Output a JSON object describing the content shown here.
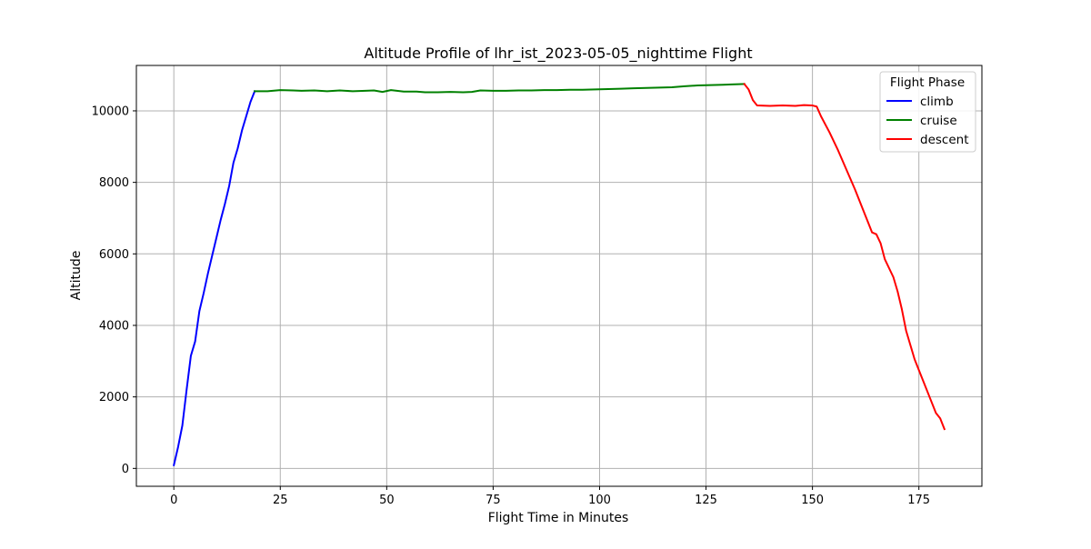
{
  "chart_data": {
    "type": "line",
    "title": "Altitude Profile of lhr_ist_2023-05-05_nighttime Flight",
    "xlabel": "Flight Time in Minutes",
    "ylabel": "Altitude",
    "xlim": [
      -8.8,
      189.8
    ],
    "ylim": [
      -500,
      11270
    ],
    "xticks": [
      0,
      25,
      50,
      75,
      100,
      125,
      150,
      175
    ],
    "yticks": [
      0,
      2000,
      4000,
      6000,
      8000,
      10000
    ],
    "grid": true,
    "legend": {
      "title": "Flight Phase",
      "position": "top-right"
    },
    "series": [
      {
        "name": "climb",
        "color": "#0000ff",
        "points": [
          [
            0,
            90
          ],
          [
            1,
            600
          ],
          [
            2,
            1200
          ],
          [
            3,
            2200
          ],
          [
            4,
            3150
          ],
          [
            5,
            3550
          ],
          [
            6,
            4400
          ],
          [
            7,
            4900
          ],
          [
            8,
            5450
          ],
          [
            9,
            5950
          ],
          [
            10,
            6450
          ],
          [
            11,
            6950
          ],
          [
            12,
            7400
          ],
          [
            13,
            7900
          ],
          [
            14,
            8550
          ],
          [
            15,
            8950
          ],
          [
            16,
            9450
          ],
          [
            17,
            9850
          ],
          [
            18,
            10250
          ],
          [
            19,
            10550
          ]
        ]
      },
      {
        "name": "cruise",
        "color": "#008000",
        "points": [
          [
            19,
            10550
          ],
          [
            22,
            10550
          ],
          [
            25,
            10580
          ],
          [
            28,
            10570
          ],
          [
            30,
            10560
          ],
          [
            33,
            10570
          ],
          [
            36,
            10550
          ],
          [
            39,
            10570
          ],
          [
            42,
            10550
          ],
          [
            45,
            10560
          ],
          [
            47,
            10570
          ],
          [
            49,
            10530
          ],
          [
            51,
            10580
          ],
          [
            54,
            10540
          ],
          [
            57,
            10540
          ],
          [
            59,
            10520
          ],
          [
            62,
            10520
          ],
          [
            65,
            10530
          ],
          [
            68,
            10520
          ],
          [
            70,
            10530
          ],
          [
            72,
            10570
          ],
          [
            75,
            10560
          ],
          [
            78,
            10560
          ],
          [
            81,
            10570
          ],
          [
            84,
            10570
          ],
          [
            87,
            10580
          ],
          [
            90,
            10580
          ],
          [
            93,
            10590
          ],
          [
            96,
            10590
          ],
          [
            99,
            10600
          ],
          [
            102,
            10610
          ],
          [
            105,
            10620
          ],
          [
            108,
            10630
          ],
          [
            111,
            10640
          ],
          [
            114,
            10650
          ],
          [
            117,
            10660
          ],
          [
            120,
            10690
          ],
          [
            123,
            10710
          ],
          [
            126,
            10720
          ],
          [
            129,
            10730
          ],
          [
            131,
            10740
          ],
          [
            134,
            10750
          ]
        ]
      },
      {
        "name": "descent",
        "color": "#ff0000",
        "points": [
          [
            134,
            10750
          ],
          [
            135,
            10600
          ],
          [
            136,
            10300
          ],
          [
            137,
            10150
          ],
          [
            140,
            10140
          ],
          [
            143,
            10150
          ],
          [
            146,
            10140
          ],
          [
            148,
            10160
          ],
          [
            150,
            10150
          ],
          [
            151,
            10120
          ],
          [
            152,
            9850
          ],
          [
            154,
            9400
          ],
          [
            156,
            8900
          ],
          [
            158,
            8350
          ],
          [
            160,
            7800
          ],
          [
            162,
            7200
          ],
          [
            163,
            6900
          ],
          [
            164,
            6600
          ],
          [
            165,
            6550
          ],
          [
            166,
            6300
          ],
          [
            167,
            5850
          ],
          [
            169,
            5350
          ],
          [
            170,
            4950
          ],
          [
            171,
            4450
          ],
          [
            172,
            3850
          ],
          [
            174,
            3050
          ],
          [
            176,
            2450
          ],
          [
            178,
            1850
          ],
          [
            179,
            1550
          ],
          [
            180,
            1400
          ],
          [
            181,
            1100
          ]
        ]
      }
    ]
  }
}
